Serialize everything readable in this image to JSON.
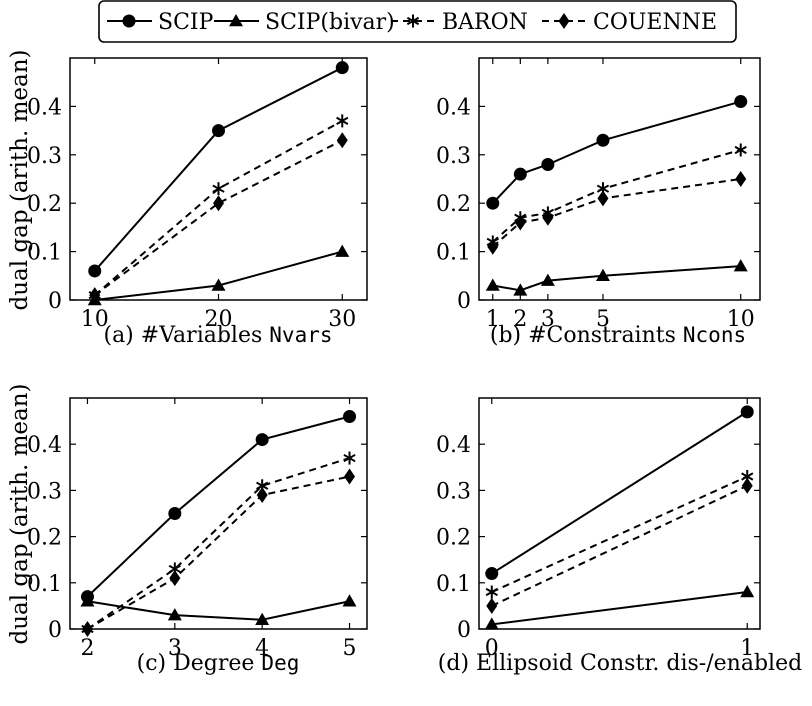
{
  "legend": {
    "position": "top-center",
    "entries": [
      {
        "name": "SCIP",
        "marker": "circle",
        "dash": "solid"
      },
      {
        "name": "SCIP(bivar)",
        "marker": "triangle",
        "dash": "solid"
      },
      {
        "name": "BARON",
        "marker": "asterisk",
        "dash": "dashed"
      },
      {
        "name": "COUENNE",
        "marker": "diamond",
        "dash": "dashed"
      }
    ]
  },
  "chart_data": [
    {
      "type": "line",
      "caption_prefix": "(a) #Variables ",
      "caption_code": "Nvars",
      "ylabel": "dual gap (arith. mean)",
      "xlim": [
        8,
        32
      ],
      "ylim": [
        0,
        0.5
      ],
      "xticks": [
        10,
        20,
        30
      ],
      "yticks": [
        0,
        0.1,
        0.2,
        0.3,
        0.4
      ],
      "ytick_labels": [
        "0",
        "0.1",
        "0.2",
        "0.3",
        "0.4"
      ],
      "x": [
        10,
        20,
        30
      ],
      "series": [
        {
          "name": "SCIP",
          "values": [
            0.06,
            0.35,
            0.48
          ]
        },
        {
          "name": "SCIP(bivar)",
          "values": [
            0.0,
            0.03,
            0.1
          ]
        },
        {
          "name": "BARON",
          "values": [
            0.01,
            0.23,
            0.37
          ]
        },
        {
          "name": "COUENNE",
          "values": [
            0.01,
            0.2,
            0.33
          ]
        }
      ]
    },
    {
      "type": "line",
      "caption_prefix": "(b) #Constraints ",
      "caption_code": "Ncons",
      "ylabel": "",
      "xlim": [
        0.5,
        10.7
      ],
      "ylim": [
        0,
        0.5
      ],
      "xticks": [
        1,
        2,
        3,
        5,
        10
      ],
      "yticks": [
        0,
        0.1,
        0.2,
        0.3,
        0.4
      ],
      "ytick_labels": [
        "0",
        "0.1",
        "0.2",
        "0.3",
        "0.4"
      ],
      "x": [
        1,
        2,
        3,
        5,
        10
      ],
      "series": [
        {
          "name": "SCIP",
          "values": [
            0.2,
            0.26,
            0.28,
            0.33,
            0.41
          ]
        },
        {
          "name": "SCIP(bivar)",
          "values": [
            0.03,
            0.02,
            0.04,
            0.05,
            0.07
          ]
        },
        {
          "name": "BARON",
          "values": [
            0.12,
            0.17,
            0.18,
            0.23,
            0.31
          ]
        },
        {
          "name": "COUENNE",
          "values": [
            0.11,
            0.16,
            0.17,
            0.21,
            0.25
          ]
        }
      ]
    },
    {
      "type": "line",
      "caption_prefix": "(c) Degree ",
      "caption_code": "Deg",
      "ylabel": "dual gap (arith. mean)",
      "xlim": [
        1.8,
        5.2
      ],
      "ylim": [
        0,
        0.5
      ],
      "xticks": [
        2,
        3,
        4,
        5
      ],
      "yticks": [
        0,
        0.1,
        0.2,
        0.3,
        0.4
      ],
      "ytick_labels": [
        "0",
        "0.1",
        "0.2",
        "0.3",
        "0.4"
      ],
      "x": [
        2,
        3,
        4,
        5
      ],
      "series": [
        {
          "name": "SCIP",
          "values": [
            0.07,
            0.25,
            0.41,
            0.46
          ]
        },
        {
          "name": "SCIP(bivar)",
          "values": [
            0.06,
            0.03,
            0.02,
            0.06
          ]
        },
        {
          "name": "BARON",
          "values": [
            0.0,
            0.13,
            0.31,
            0.37
          ]
        },
        {
          "name": "COUENNE",
          "values": [
            0.0,
            0.11,
            0.29,
            0.33
          ]
        }
      ]
    },
    {
      "type": "line",
      "caption_prefix": "(d) Ellipsoid Constr. dis-/enabled",
      "caption_code": "",
      "ylabel": "",
      "xlim": [
        -0.05,
        1.05
      ],
      "ylim": [
        0,
        0.5
      ],
      "xticks": [
        0,
        1
      ],
      "yticks": [
        0,
        0.1,
        0.2,
        0.3,
        0.4
      ],
      "ytick_labels": [
        "0",
        "0.1",
        "0.2",
        "0.3",
        "0.4"
      ],
      "x": [
        0,
        1
      ],
      "series": [
        {
          "name": "SCIP",
          "values": [
            0.12,
            0.47
          ]
        },
        {
          "name": "SCIP(bivar)",
          "values": [
            0.01,
            0.08
          ]
        },
        {
          "name": "BARON",
          "values": [
            0.08,
            0.33
          ]
        },
        {
          "name": "COUENNE",
          "values": [
            0.05,
            0.31
          ]
        }
      ]
    }
  ]
}
